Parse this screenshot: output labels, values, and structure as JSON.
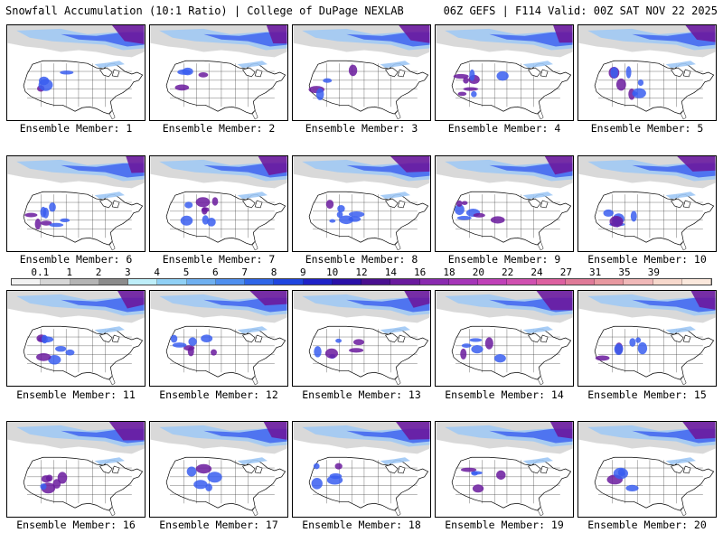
{
  "header": {
    "left_title": "Snowfall Accumulation (10:1 Ratio) | College of DuPage NEXLAB",
    "right_title": "06Z GEFS | F114 Valid: 00Z SAT NOV 22 2025"
  },
  "members": [
    {
      "label": "Ensemble Member: 1"
    },
    {
      "label": "Ensemble Member: 2"
    },
    {
      "label": "Ensemble Member: 3"
    },
    {
      "label": "Ensemble Member: 4"
    },
    {
      "label": "Ensemble Member: 5"
    },
    {
      "label": "Ensemble Member: 6"
    },
    {
      "label": "Ensemble Member: 7"
    },
    {
      "label": "Ensemble Member: 8"
    },
    {
      "label": "Ensemble Member: 9"
    },
    {
      "label": "Ensemble Member: 10"
    },
    {
      "label": "Ensemble Member: 11"
    },
    {
      "label": "Ensemble Member: 12"
    },
    {
      "label": "Ensemble Member: 13"
    },
    {
      "label": "Ensemble Member: 14"
    },
    {
      "label": "Ensemble Member: 15"
    },
    {
      "label": "Ensemble Member: 16"
    },
    {
      "label": "Ensemble Member: 17"
    },
    {
      "label": "Ensemble Member: 18"
    },
    {
      "label": "Ensemble Member: 19"
    },
    {
      "label": "Ensemble Member: 20"
    }
  ],
  "legend": {
    "labels": [
      "0.1",
      "1",
      "2",
      "3",
      "4",
      "5",
      "6",
      "7",
      "8",
      "9",
      "10",
      "12",
      "14",
      "16",
      "18",
      "20",
      "22",
      "24",
      "27",
      "31",
      "35",
      "39"
    ],
    "colors": [
      "#f2f2f2",
      "#d6d6d6",
      "#b4b4b4",
      "#8c8c8c",
      "#bdeef9",
      "#8fd0f5",
      "#6fb0f0",
      "#4f8fef",
      "#2f66e8",
      "#1f45e0",
      "#1f22c8",
      "#2a10a8",
      "#4a1090",
      "#6a1a9e",
      "#8a2ab0",
      "#a535b8",
      "#c040b8",
      "#d050b0",
      "#dd60a0",
      "#e07a98",
      "#e898a0",
      "#f0b8b8",
      "#f7d8cc",
      "#fbe8dc"
    ]
  },
  "colors": {
    "background": "#ffffff",
    "land": "#ffffff",
    "borders": "#000000",
    "heavy_snow": "#6a1a9e",
    "moderate_snow": "#3a5ef0",
    "light_snow": "#9ec8f5",
    "trace": "#b4b4b4"
  }
}
